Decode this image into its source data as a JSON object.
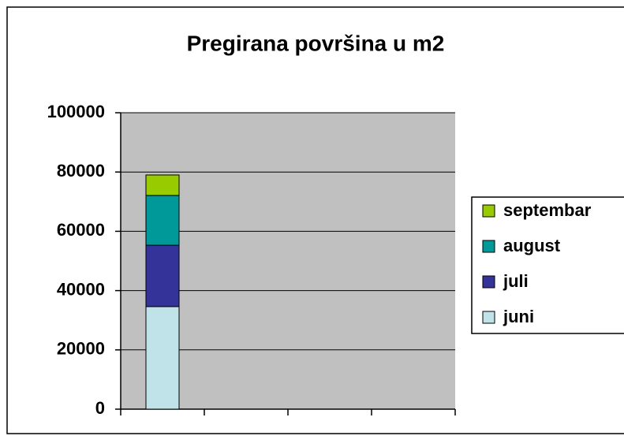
{
  "chart_data": {
    "type": "bar",
    "stacked": true,
    "title": "Pregirana površina u m2",
    "categories": [
      null,
      null,
      null,
      null
    ],
    "series": [
      {
        "name": "juni",
        "color": "#bfe3e8",
        "values": [
          34600,
          null,
          null,
          null
        ]
      },
      {
        "name": "juli",
        "color": "#333399",
        "values": [
          20700,
          null,
          null,
          null
        ]
      },
      {
        "name": "august",
        "color": "#009999",
        "values": [
          16800,
          null,
          null,
          null
        ]
      },
      {
        "name": "septembar",
        "color": "#99cc00",
        "values": [
          6900,
          null,
          null,
          null
        ]
      }
    ],
    "ylim": [
      0,
      100000
    ],
    "yticks": [
      0,
      20000,
      40000,
      60000,
      80000,
      100000
    ],
    "grid": true,
    "legend": "right"
  }
}
